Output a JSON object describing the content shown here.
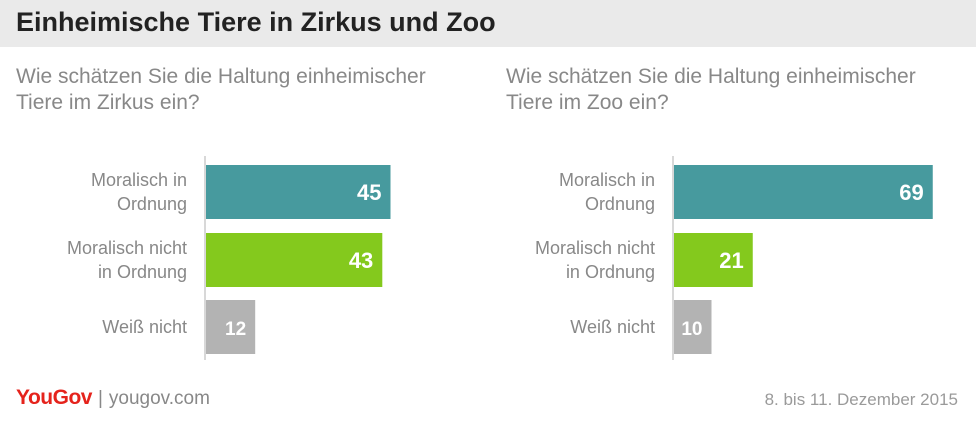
{
  "header": {
    "title": "Einheimische Tiere in Zirkus und Zoo"
  },
  "footer": {
    "brand": "YouGov",
    "url": "yougov.com",
    "date": "8. bis 11. Dezember 2015"
  },
  "colors": {
    "moral": "#479a9e",
    "unmoral": "#84c91d",
    "unknown": "#b3b3b3",
    "label": "#888888",
    "axis": "#d8d8d8"
  },
  "chart_data": [
    {
      "type": "bar",
      "title": "Wie schätzen Sie die Haltung einheimischer Tiere im Zirkus ein?",
      "categories": [
        [
          "Moralisch in",
          "Ordnung"
        ],
        [
          "Moralisch nicht",
          "in Ordnung"
        ],
        [
          "Weiß nicht"
        ]
      ],
      "values": [
        45,
        43,
        12
      ],
      "xlim": [
        0,
        100
      ]
    },
    {
      "type": "bar",
      "title": "Wie schätzen Sie die Haltung einheimischer Tiere im Zoo ein?",
      "categories": [
        [
          "Moralisch in",
          "Ordnung"
        ],
        [
          "Moralisch nicht",
          "in Ordnung"
        ],
        [
          "Weiß nicht"
        ]
      ],
      "values": [
        69,
        21,
        10
      ],
      "xlim": [
        0,
        100
      ]
    }
  ]
}
